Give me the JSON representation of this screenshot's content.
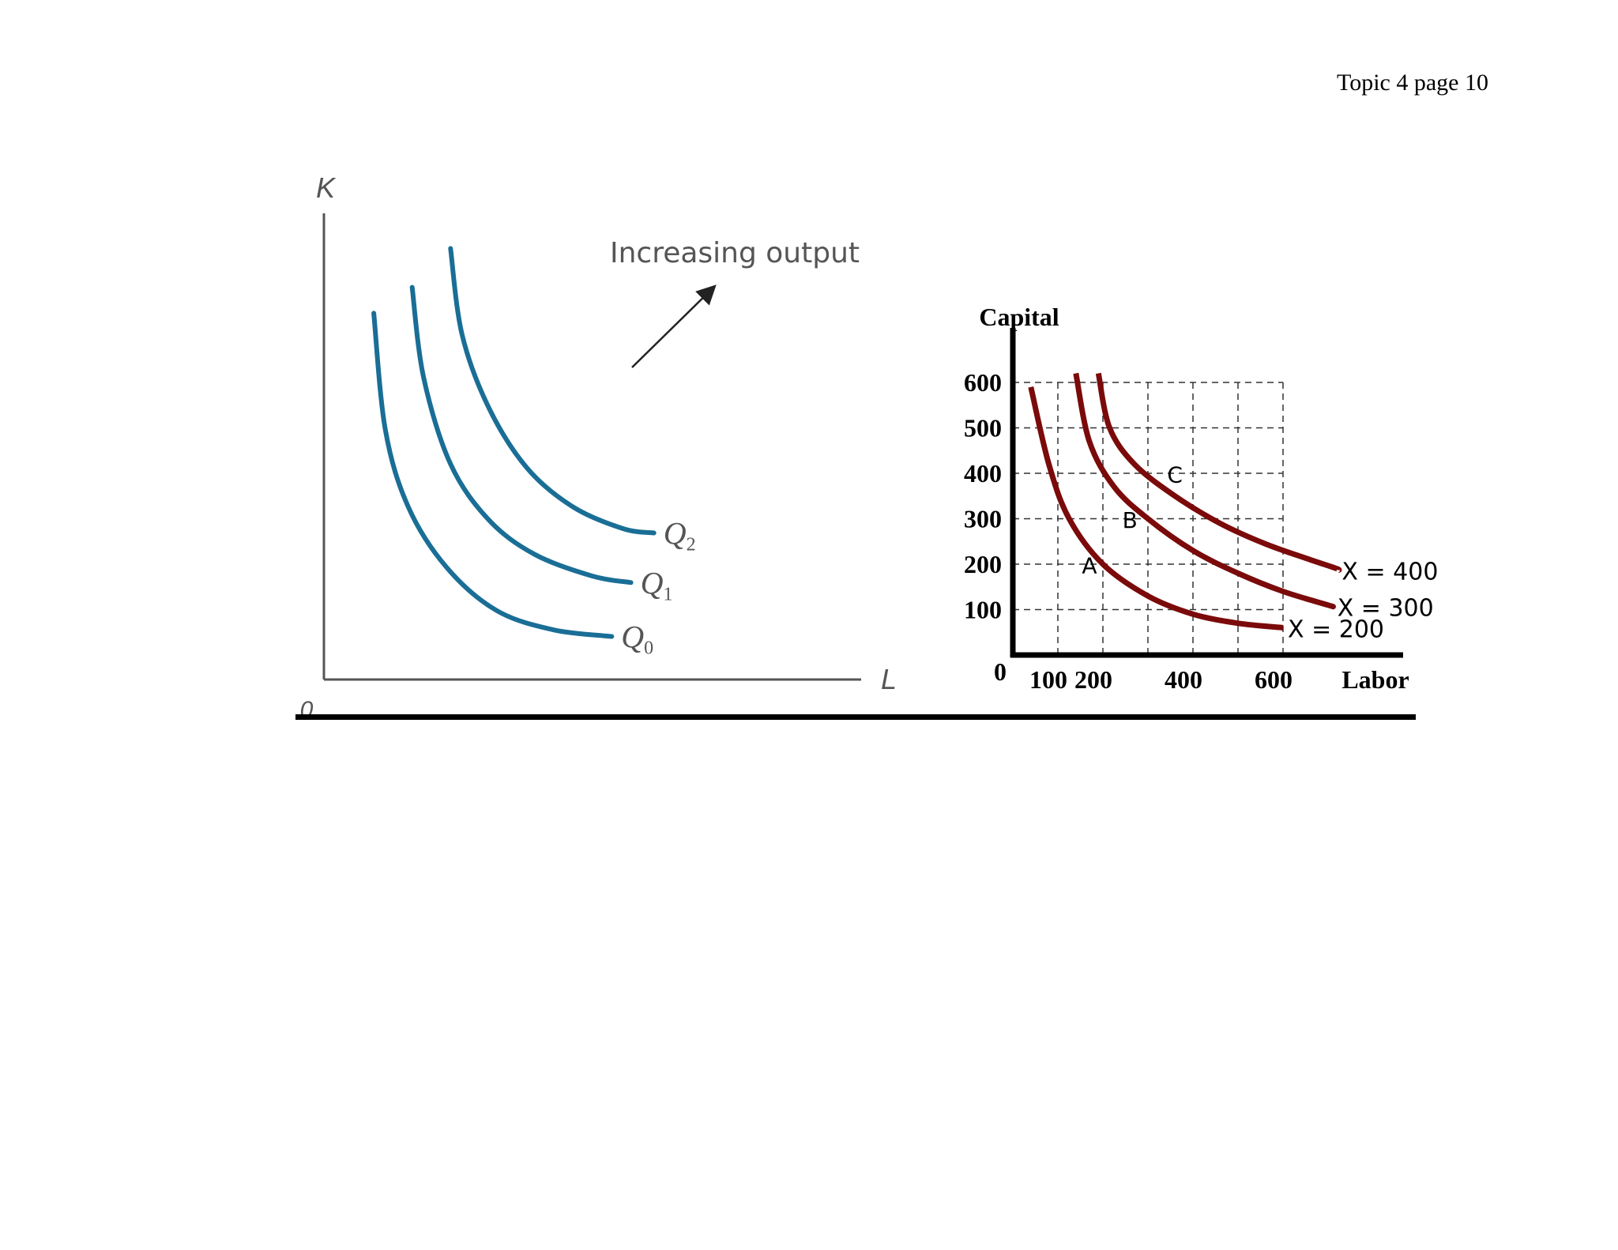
{
  "header": {
    "page_label": "Topic 4 page 10"
  },
  "chart_data": [
    {
      "type": "line",
      "title": "",
      "xlabel": "L",
      "ylabel": "K",
      "origin_label": "0",
      "annotation": "Increasing output",
      "x_ticks": [],
      "y_ticks": [],
      "xlim": [
        0,
        14
      ],
      "ylim": [
        0,
        11
      ],
      "line_color": "#1a6e96",
      "series": [
        {
          "name": "Q0",
          "label_main": "Q",
          "label_sub": "0",
          "points": [
            [
              1.3,
              8.5
            ],
            [
              1.6,
              5.8
            ],
            [
              2.2,
              4.0
            ],
            [
              3.2,
              2.6
            ],
            [
              4.5,
              1.6
            ],
            [
              6.0,
              1.15
            ],
            [
              7.5,
              1.0
            ]
          ]
        },
        {
          "name": "Q1",
          "label_main": "Q",
          "label_sub": "1",
          "points": [
            [
              2.3,
              9.1
            ],
            [
              2.6,
              7.0
            ],
            [
              3.3,
              5.0
            ],
            [
              4.3,
              3.7
            ],
            [
              5.5,
              2.9
            ],
            [
              7.0,
              2.4
            ],
            [
              8.0,
              2.25
            ]
          ]
        },
        {
          "name": "Q2",
          "label_main": "Q",
          "label_sub": "2",
          "points": [
            [
              3.3,
              10.0
            ],
            [
              3.6,
              8.0
            ],
            [
              4.3,
              6.3
            ],
            [
              5.3,
              4.9
            ],
            [
              6.5,
              4.0
            ],
            [
              7.8,
              3.5
            ],
            [
              8.6,
              3.4
            ]
          ]
        }
      ]
    },
    {
      "type": "line",
      "title": "",
      "xlabel": "Labor",
      "ylabel": "Capital",
      "origin_label": "0",
      "x_ticks": [
        100,
        200,
        400,
        600
      ],
      "y_ticks": [
        100,
        200,
        300,
        400,
        500,
        600
      ],
      "xlim": [
        0,
        800
      ],
      "ylim": [
        0,
        600
      ],
      "grid": true,
      "line_color": "#7b0a0a",
      "points": [
        {
          "label": "A",
          "x": 170,
          "y": 180
        },
        {
          "label": "B",
          "x": 260,
          "y": 280
        },
        {
          "label": "C",
          "x": 360,
          "y": 380
        }
      ],
      "series": [
        {
          "name": "X = 200",
          "points": [
            [
              40,
              590
            ],
            [
              80,
              420
            ],
            [
              125,
              300
            ],
            [
              200,
              200
            ],
            [
              300,
              130
            ],
            [
              400,
              90
            ],
            [
              500,
              70
            ],
            [
              600,
              60
            ]
          ]
        },
        {
          "name": "X = 300",
          "points": [
            [
              140,
              620
            ],
            [
              170,
              470
            ],
            [
              225,
              370
            ],
            [
              300,
              300
            ],
            [
              400,
              230
            ],
            [
              500,
              180
            ],
            [
              600,
              140
            ],
            [
              700,
              110
            ],
            [
              710,
              107
            ]
          ]
        },
        {
          "name": "X = 400",
          "points": [
            [
              190,
              620
            ],
            [
              215,
              500
            ],
            [
              270,
              420
            ],
            [
              360,
              350
            ],
            [
              460,
              290
            ],
            [
              560,
              245
            ],
            [
              660,
              210
            ],
            [
              720,
              190
            ],
            [
              720,
              187
            ]
          ]
        }
      ]
    }
  ]
}
